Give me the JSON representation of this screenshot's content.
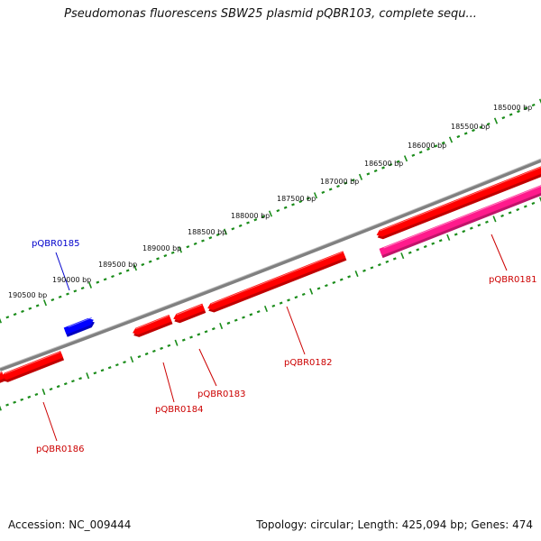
{
  "title": "Pseudomonas fluorescens SBW25 plasmid pQBR103, complete sequ...",
  "footer": {
    "accession": "Accession: NC_009444",
    "summary": "Topology: circular; Length: 425,094 bp; Genes: 474"
  },
  "colors": {
    "backbone": "#808080",
    "tick": "#1a8c1a",
    "gene_red": "#ff0000",
    "gene_pink": "#ff1a8c",
    "gene_blue": "#0000ff",
    "label_red": "#cc0000",
    "label_blue": "#0000cc"
  },
  "scale_labels": [
    "185000 bp",
    "185500 bp",
    "186000 bp",
    "186500 bp",
    "187000 bp",
    "187500 bp",
    "188000 bp",
    "188500 bp",
    "189000 bp",
    "189500 bp",
    "190000 bp",
    "190500 bp"
  ],
  "genes": [
    {
      "name": "pQBR0181",
      "color": "gene_pink",
      "label_color": "label_red"
    },
    {
      "name": "pQBR0182",
      "color": "gene_red",
      "label_color": "label_red"
    },
    {
      "name": "pQBR0183",
      "color": "gene_red",
      "label_color": "label_red"
    },
    {
      "name": "pQBR0184",
      "color": "gene_red",
      "label_color": "label_red"
    },
    {
      "name": "pQBR0185",
      "color": "gene_blue",
      "label_color": "label_blue"
    },
    {
      "name": "pQBR0186",
      "color": "gene_red",
      "label_color": "label_red"
    }
  ]
}
